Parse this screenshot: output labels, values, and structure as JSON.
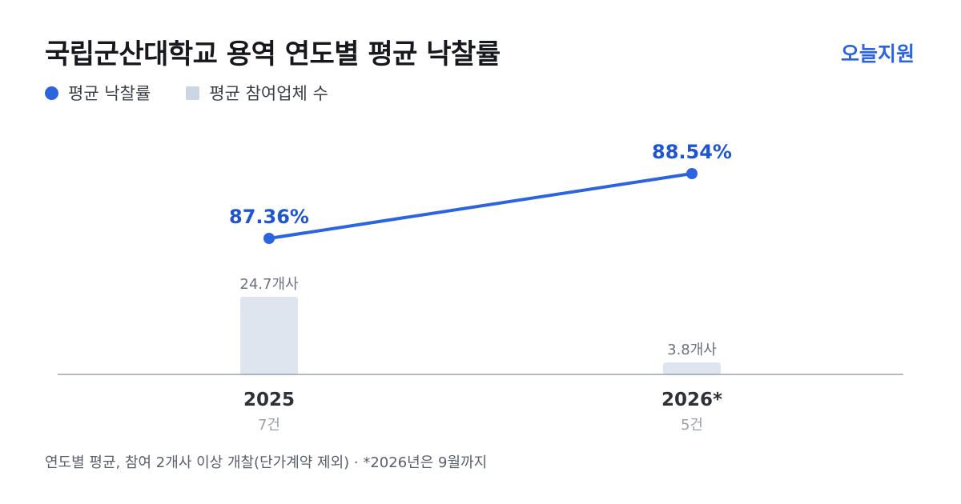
{
  "header": {
    "title": "국립군산대학교 용역 연도별 평균 낙찰률",
    "brand": "오늘지원"
  },
  "legend": {
    "rate_label": "평균 낙찰률",
    "bidders_label": "평균 참여업체 수"
  },
  "colors": {
    "rate_line": "#2b63e0",
    "rate_label": "#1f56cf",
    "bar_fill": "#dfe5ee",
    "axis": "#9aa4b2",
    "year_label": "#2d3138",
    "count_label": "#9aa0aa",
    "bar_label": "#6b7280"
  },
  "chart_data": {
    "type": "line+bar",
    "categories": [
      "2025",
      "2026*"
    ],
    "series": [
      {
        "name": "평균 낙찰률",
        "type": "line",
        "values": [
          87.36,
          88.54
        ],
        "unit": "%",
        "labels": [
          "87.36%",
          "88.54%"
        ]
      },
      {
        "name": "평균 참여업체 수",
        "type": "bar",
        "values": [
          24.7,
          3.8
        ],
        "unit": "개사",
        "labels": [
          "24.7개사",
          "3.8개사"
        ]
      }
    ],
    "counts": [
      "7건",
      "5건"
    ]
  },
  "footnote": "연도별 평균, 참여 2개사 이상 개찰(단가계약 제외) · *2026년은 9월까지"
}
